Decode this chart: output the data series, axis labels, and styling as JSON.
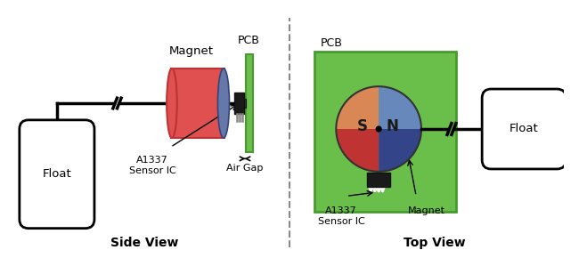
{
  "bg_color": "#ffffff",
  "magnet_red": "#e05050",
  "magnet_blue_side": "#6677aa",
  "magnet_orange": "#d98855",
  "magnet_blue_top": "#6688bb",
  "magnet_dark_red": "#c03333",
  "magnet_dark_blue": "#334488",
  "pcb_green": "#6abf4b",
  "pcb_edge": "#4a9930",
  "sensor_dark": "#222222",
  "title_side": "Side View",
  "title_top": "Top View",
  "label_magnet_side": "Magnet",
  "label_pcb_side": "PCB",
  "label_float_side": "Float",
  "label_sensor_side": "A1337\nSensor IC",
  "label_airgap": "Air Gap",
  "label_pcb_top": "PCB",
  "label_magnet_top": "Magnet",
  "label_sensor_top": "A1337\nSensor IC",
  "label_float_top": "Float",
  "label_s": "S",
  "label_n": "N"
}
